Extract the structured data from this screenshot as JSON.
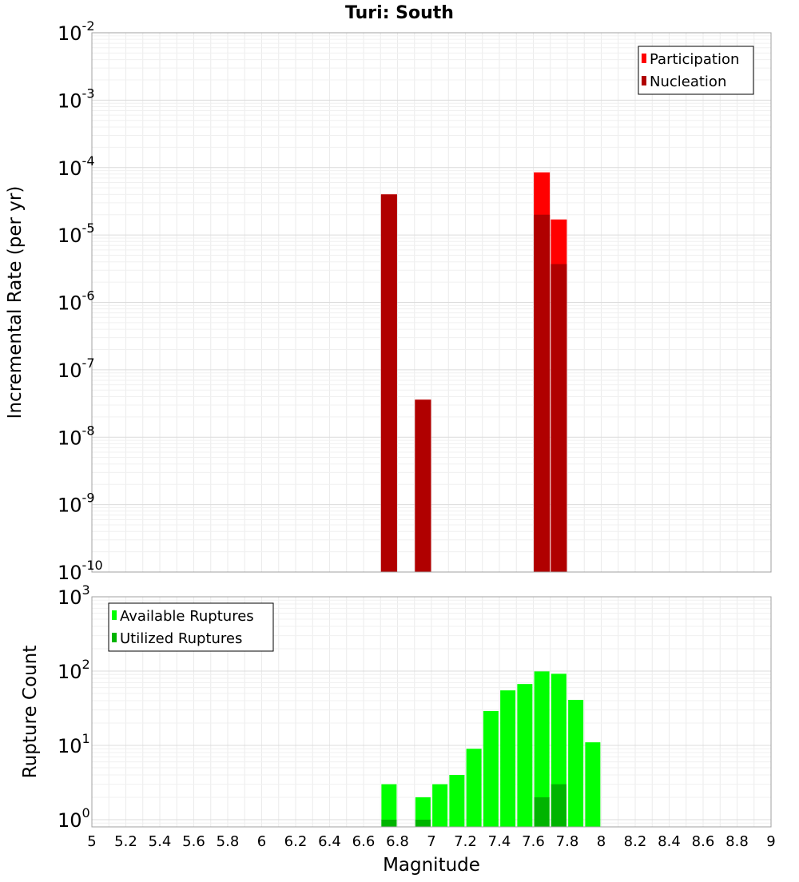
{
  "title": "Turi: South",
  "chart_data": [
    {
      "type": "bar",
      "yscale": "log",
      "ylabel": "Incremental Rate (per yr)",
      "xlabel": "",
      "xlim": [
        5,
        9
      ],
      "ylim": [
        1e-10,
        0.01
      ],
      "y_ticks": [
        {
          "base": "10",
          "exp": "-10"
        },
        {
          "base": "10",
          "exp": "-9"
        },
        {
          "base": "10",
          "exp": "-8"
        },
        {
          "base": "10",
          "exp": "-7"
        },
        {
          "base": "10",
          "exp": "-6"
        },
        {
          "base": "10",
          "exp": "-5"
        },
        {
          "base": "10",
          "exp": "-4"
        },
        {
          "base": "10",
          "exp": "-3"
        },
        {
          "base": "10",
          "exp": "-2"
        }
      ],
      "legend": {
        "placement": "top-right",
        "entries": [
          {
            "name": "Participation",
            "color": "#ff0000"
          },
          {
            "name": "Nucleation",
            "color": "#b00000"
          }
        ]
      },
      "series": [
        {
          "name": "Participation",
          "color": "#ff0000",
          "points": [
            {
              "x": 6.75,
              "y": 4e-05
            },
            {
              "x": 6.95,
              "y": 3.6e-08
            },
            {
              "x": 7.65,
              "y": 8.5e-05
            },
            {
              "x": 7.75,
              "y": 1.7e-05
            }
          ]
        },
        {
          "name": "Nucleation",
          "color": "#b00000",
          "points": [
            {
              "x": 6.75,
              "y": 4e-05
            },
            {
              "x": 6.95,
              "y": 3.6e-08
            },
            {
              "x": 7.65,
              "y": 2e-05
            },
            {
              "x": 7.75,
              "y": 3.7e-06
            }
          ]
        }
      ],
      "grid": true
    },
    {
      "type": "bar",
      "yscale": "log",
      "ylabel": "Rupture Count",
      "xlabel": "Magnitude",
      "xlim": [
        5,
        9
      ],
      "ylim": [
        0.8,
        1000
      ],
      "x_ticks": [
        "5",
        "5.2",
        "5.4",
        "5.6",
        "5.8",
        "6",
        "6.2",
        "6.4",
        "6.6",
        "6.8",
        "7",
        "7.2",
        "7.4",
        "7.6",
        "7.8",
        "8",
        "8.2",
        "8.4",
        "8.6",
        "8.8",
        "9"
      ],
      "y_ticks": [
        {
          "base": "10",
          "exp": "0"
        },
        {
          "base": "10",
          "exp": "1"
        },
        {
          "base": "10",
          "exp": "2"
        },
        {
          "base": "10",
          "exp": "3"
        }
      ],
      "legend": {
        "placement": "top-left",
        "entries": [
          {
            "name": "Available Ruptures",
            "color": "#00ff00"
          },
          {
            "name": "Utilized Ruptures",
            "color": "#00b400"
          }
        ]
      },
      "series": [
        {
          "name": "Available Ruptures",
          "color": "#00ff00",
          "points": [
            {
              "x": 6.75,
              "y": 3
            },
            {
              "x": 6.95,
              "y": 2
            },
            {
              "x": 7.05,
              "y": 3
            },
            {
              "x": 7.15,
              "y": 4
            },
            {
              "x": 7.25,
              "y": 9
            },
            {
              "x": 7.35,
              "y": 29
            },
            {
              "x": 7.45,
              "y": 55
            },
            {
              "x": 7.55,
              "y": 67
            },
            {
              "x": 7.65,
              "y": 99
            },
            {
              "x": 7.75,
              "y": 92
            },
            {
              "x": 7.85,
              "y": 41
            },
            {
              "x": 7.95,
              "y": 11
            }
          ]
        },
        {
          "name": "Utilized Ruptures",
          "color": "#00b400",
          "points": [
            {
              "x": 6.75,
              "y": 1
            },
            {
              "x": 6.95,
              "y": 1
            },
            {
              "x": 7.65,
              "y": 2
            },
            {
              "x": 7.75,
              "y": 3
            }
          ]
        }
      ],
      "grid": true
    }
  ]
}
